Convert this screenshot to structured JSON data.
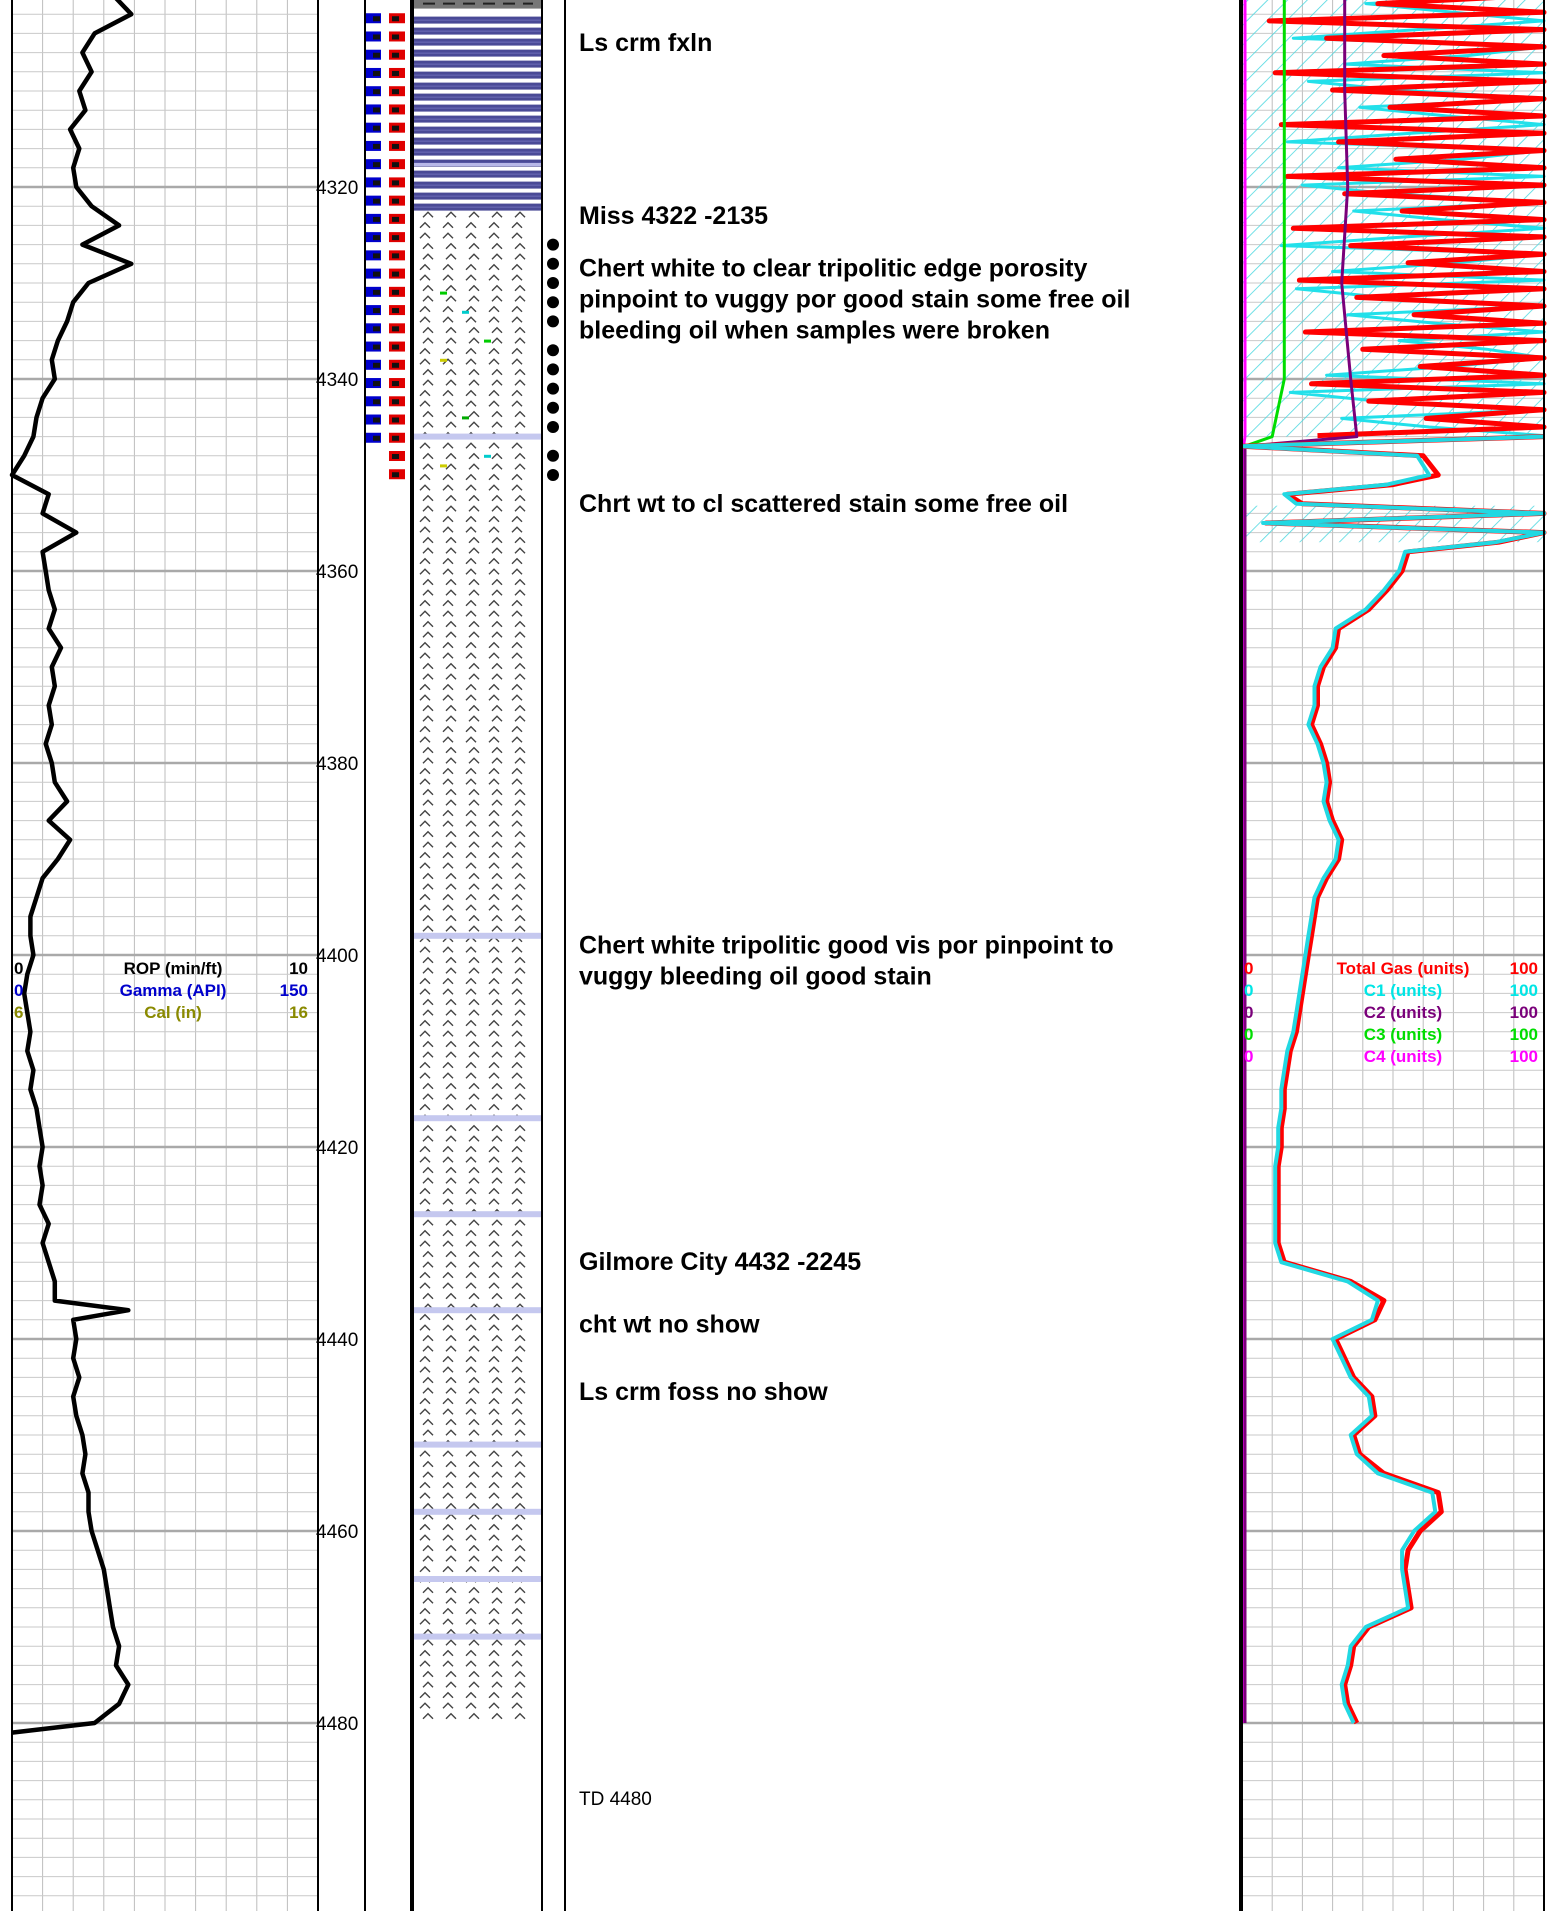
{
  "chart_data": {
    "type": "line",
    "depth_axis": {
      "min": 4300,
      "max": 4500,
      "tick_labels": [
        "4320",
        "4340",
        "4360",
        "4380",
        "4400",
        "4420",
        "4440",
        "4460",
        "4480"
      ]
    },
    "left_track": {
      "headers": [
        {
          "min": "0",
          "label": "ROP (min/ft)",
          "max": "10",
          "color": "#000000"
        },
        {
          "min": "0",
          "label": "Gamma (API)",
          "max": "150",
          "color": "#0000cc"
        },
        {
          "min": "6",
          "label": "Cal (in)",
          "max": "16",
          "color": "#8a8a00"
        }
      ],
      "rop_series": {
        "name": "ROP (min/ft)",
        "depth": [
          4300,
          4302,
          4304,
          4306,
          4308,
          4310,
          4312,
          4314,
          4316,
          4318,
          4320,
          4322,
          4324,
          4326,
          4328,
          4330,
          4332,
          4334,
          4336,
          4338,
          4340,
          4342,
          4344,
          4346,
          4348,
          4350,
          4352,
          4354,
          4356,
          4358,
          4360,
          4362,
          4364,
          4366,
          4368,
          4370,
          4372,
          4374,
          4376,
          4378,
          4380,
          4382,
          4384,
          4386,
          4388,
          4390,
          4392,
          4394,
          4396,
          4398,
          4400,
          4402,
          4404,
          4406,
          4408,
          4410,
          4412,
          4414,
          4416,
          4418,
          4420,
          4422,
          4424,
          4426,
          4428,
          4430,
          4432,
          4434,
          4436,
          4437,
          4438,
          4440,
          4442,
          4444,
          4446,
          4448,
          4450,
          4452,
          4454,
          4456,
          4458,
          4460,
          4462,
          4464,
          4466,
          4468,
          4470,
          4472,
          4474,
          4476,
          4478,
          4480,
          4481
        ],
        "values": [
          3.3,
          3.9,
          2.7,
          2.3,
          2.6,
          2.2,
          2.4,
          1.9,
          2.2,
          2.0,
          2.1,
          2.6,
          3.5,
          2.3,
          3.9,
          2.5,
          2.0,
          1.8,
          1.5,
          1.3,
          1.4,
          1.0,
          0.8,
          0.7,
          0.4,
          0.0,
          1.2,
          1.0,
          2.1,
          1.0,
          1.1,
          1.2,
          1.4,
          1.2,
          1.6,
          1.3,
          1.4,
          1.2,
          1.3,
          1.1,
          1.3,
          1.4,
          1.8,
          1.2,
          1.9,
          1.5,
          1.0,
          0.8,
          0.6,
          0.6,
          0.7,
          0.5,
          0.4,
          0.5,
          0.6,
          0.5,
          0.7,
          0.6,
          0.8,
          0.9,
          1.0,
          0.9,
          1.0,
          0.9,
          1.2,
          1.0,
          1.2,
          1.4,
          1.4,
          3.8,
          2.0,
          2.1,
          2.0,
          2.2,
          2.0,
          2.1,
          2.3,
          2.4,
          2.3,
          2.5,
          2.5,
          2.6,
          2.8,
          3.0,
          3.1,
          3.2,
          3.3,
          3.5,
          3.4,
          3.8,
          3.5,
          2.7,
          0.0
        ]
      }
    },
    "lithology": {
      "intervals": [
        {
          "top": 4300,
          "base": 4301,
          "type": "shale"
        },
        {
          "top": 4301,
          "base": 4322,
          "type": "limestone"
        },
        {
          "top": 4322,
          "base": 4480,
          "type": "chert"
        }
      ],
      "thin_beds": [
        4346,
        4398,
        4417,
        4427,
        4437,
        4451,
        4458,
        4465,
        4471
      ]
    },
    "oil_shows": [
      4326,
      4328,
      4330,
      4332,
      4334,
      4337,
      4339,
      4341,
      4343,
      4345,
      4348,
      4350
    ],
    "descriptions": [
      {
        "depth": 4305,
        "lines": [
          "Ls crm fxln"
        ],
        "style": "bold"
      },
      {
        "depth": 4323,
        "lines": [
          "Miss 4322 -2135"
        ],
        "style": "bold"
      },
      {
        "depth": 4328.5,
        "lines": [
          "Chert white to clear tripolitic edge porosity",
          "pinpoint to vuggy por  good stain some free oil",
          "bleeding oil when samples were broken"
        ],
        "style": "bold"
      },
      {
        "depth": 4353,
        "lines": [
          "Chrt wt to cl scattered stain some free oil"
        ],
        "style": "bold"
      },
      {
        "depth": 4399,
        "lines": [
          "Chert white tripolitic good vis por pinpoint to",
          "vuggy bleeding oil good stain"
        ],
        "style": "bold"
      },
      {
        "depth": 4432,
        "lines": [
          "Gilmore City 4432 -2245"
        ],
        "style": "bold"
      },
      {
        "depth": 4438.5,
        "lines": [
          "cht wt no show"
        ],
        "style": "bold"
      },
      {
        "depth": 4445.5,
        "lines": [
          "Ls crm foss no show"
        ],
        "style": "bold"
      },
      {
        "depth": 4487.7,
        "lines": [
          "TD 4480"
        ],
        "style": "normal"
      }
    ],
    "right_track": {
      "headers": [
        {
          "min": "0",
          "label": "Total Gas (units)",
          "max": "100",
          "color": "#ff0000"
        },
        {
          "min": "0",
          "label": "C1 (units)",
          "max": "100",
          "color": "#00e5e5"
        },
        {
          "min": "0",
          "label": "C2 (units)",
          "max": "100",
          "color": "#7a007a"
        },
        {
          "min": "0",
          "label": "C3 (units)",
          "max": "100",
          "color": "#00dd00"
        },
        {
          "min": "0",
          "label": "C4 (units)",
          "max": "100",
          "color": "#ff00ff"
        }
      ],
      "total_gas": {
        "name": "Total Gas (units)",
        "depth": [
          4346,
          4347,
          4348,
          4350,
          4351,
          4352,
          4353,
          4354,
          4355,
          4356,
          4357,
          4358,
          4360,
          4362,
          4364,
          4366,
          4368,
          4370,
          4372,
          4374,
          4376,
          4378,
          4380,
          4382,
          4384,
          4386,
          4388,
          4390,
          4392,
          4394,
          4396,
          4398,
          4400,
          4402,
          4404,
          4406,
          4408,
          4410,
          4412,
          4414,
          4416,
          4418,
          4420,
          4422,
          4424,
          4426,
          4428,
          4430,
          4432,
          4434,
          4436,
          4438,
          4440,
          4442,
          4444,
          4446,
          4448,
          4450,
          4452,
          4454,
          4456,
          4458,
          4460,
          4462,
          4464,
          4466,
          4468,
          4470,
          4472,
          4474,
          4476,
          4478,
          4480
        ],
        "values": [
          100,
          0,
          60,
          65,
          50,
          15,
          20,
          100,
          8,
          100,
          85,
          55,
          53,
          48,
          42,
          32,
          31,
          27,
          25,
          25,
          23,
          26,
          28,
          29,
          28,
          30,
          33,
          32,
          28,
          25,
          24,
          23,
          22,
          21,
          20,
          19,
          18,
          16,
          15,
          14,
          14,
          13,
          13,
          12,
          12,
          12,
          12,
          12,
          14,
          36,
          47,
          44,
          31,
          34,
          37,
          43,
          44,
          37,
          39,
          47,
          65,
          66,
          59,
          55,
          54,
          55,
          56,
          42,
          37,
          36,
          34,
          35,
          38
        ]
      },
      "c1": {
        "name": "C1 (units)",
        "depth": [
          4346,
          4347,
          4348,
          4350,
          4351,
          4352,
          4353,
          4354,
          4355,
          4356,
          4357,
          4358,
          4360,
          4362,
          4364,
          4366,
          4368,
          4370,
          4372,
          4374,
          4376,
          4378,
          4380,
          4382,
          4384,
          4386,
          4388,
          4390,
          4392,
          4394,
          4396,
          4398,
          4400,
          4402,
          4404,
          4406,
          4408,
          4410,
          4412,
          4414,
          4416,
          4418,
          4420,
          4422,
          4424,
          4426,
          4428,
          4430,
          4432,
          4434,
          4436,
          4438,
          4440,
          4442,
          4444,
          4446,
          4448,
          4450,
          4452,
          4454,
          4456,
          4458,
          4460,
          4462,
          4464,
          4466,
          4468,
          4470,
          4472,
          4474,
          4476,
          4478,
          4480
        ],
        "values": [
          100,
          0,
          58,
          62,
          48,
          14,
          18,
          100,
          7,
          100,
          84,
          54,
          52,
          47,
          41,
          31,
          30,
          26,
          24,
          24,
          22,
          25,
          27,
          28,
          27,
          29,
          32,
          31,
          27,
          24,
          23,
          22,
          21,
          20,
          19,
          18,
          17,
          15,
          14,
          13,
          13,
          12,
          12,
          11,
          11,
          11,
          11,
          11,
          13,
          35,
          45,
          43,
          30,
          33,
          36,
          42,
          43,
          36,
          38,
          45,
          63,
          64,
          57,
          53,
          53,
          54,
          55,
          41,
          36,
          35,
          33,
          34,
          37
        ]
      },
      "c2": {
        "name": "C2 (units)",
        "depth": [
          4300,
          4310,
          4320,
          4330,
          4340,
          4346,
          4347,
          4360,
          4400,
          4440,
          4480
        ],
        "values": [
          34,
          34,
          35,
          33,
          36,
          38,
          1,
          1,
          1,
          1,
          1
        ]
      },
      "c3": {
        "name": "C3 (units)",
        "depth": [
          4300,
          4310,
          4320,
          4330,
          4340,
          4346,
          4347,
          4360,
          4400,
          4440,
          4480
        ],
        "values": [
          14,
          14,
          14,
          14,
          14,
          10,
          1,
          1,
          1,
          1,
          1
        ]
      },
      "c4": {
        "name": "C4 (units)",
        "depth": [
          4300,
          4346,
          4347,
          4480
        ],
        "values": [
          1,
          1,
          0.5,
          0.5
        ]
      }
    }
  }
}
